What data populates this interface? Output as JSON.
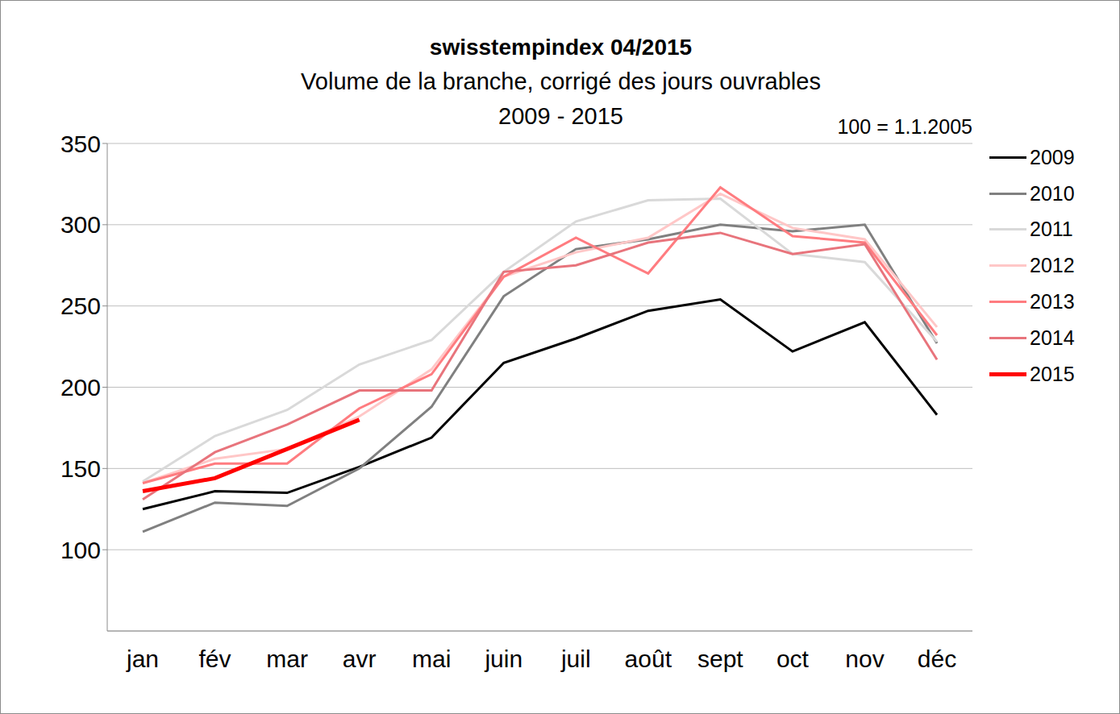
{
  "chart_data": {
    "type": "line",
    "title": "swisstempindex 04/2015",
    "subtitle": [
      "Volume de la branche, corrigé des jours ouvrables",
      "2009 - 2015"
    ],
    "annotations": [
      "100 = 1.1.2005"
    ],
    "categories": [
      "jan",
      "fév",
      "mar",
      "avr",
      "mai",
      "juin",
      "juil",
      "août",
      "sept",
      "oct",
      "nov",
      "déc"
    ],
    "series": [
      {
        "name": "2009",
        "color": "#000000",
        "values": [
          125,
          136,
          135,
          151,
          169,
          215,
          230,
          247,
          254,
          222,
          240,
          183
        ]
      },
      {
        "name": "2010",
        "color": "#808080",
        "values": [
          111,
          129,
          127,
          150,
          188,
          256,
          285,
          291,
          300,
          296,
          300,
          227
        ]
      },
      {
        "name": "2011",
        "color": "#d9d9d9",
        "values": [
          142,
          170,
          186,
          214,
          229,
          271,
          302,
          315,
          316,
          282,
          277,
          228
        ]
      },
      {
        "name": "2012",
        "color": "#ffc7c7",
        "values": [
          141,
          156,
          162,
          182,
          211,
          268,
          283,
          292,
          319,
          298,
          291,
          237
        ]
      },
      {
        "name": "2013",
        "color": "#ff7c80",
        "values": [
          141,
          153,
          153,
          187,
          208,
          268,
          292,
          270,
          323,
          293,
          289,
          232
        ]
      },
      {
        "name": "2014",
        "color": "#e8747c",
        "values": [
          131,
          160,
          177,
          198,
          198,
          271,
          275,
          289,
          295,
          282,
          288,
          217
        ]
      },
      {
        "name": "2015",
        "color": "#ff0000",
        "values": [
          136,
          144,
          162,
          180,
          null,
          null,
          null,
          null,
          null,
          null,
          null,
          null
        ]
      }
    ],
    "ylim": [
      50,
      350
    ],
    "yticks": [
      100,
      150,
      200,
      250,
      300,
      350
    ],
    "grid": true,
    "legend": "right"
  }
}
